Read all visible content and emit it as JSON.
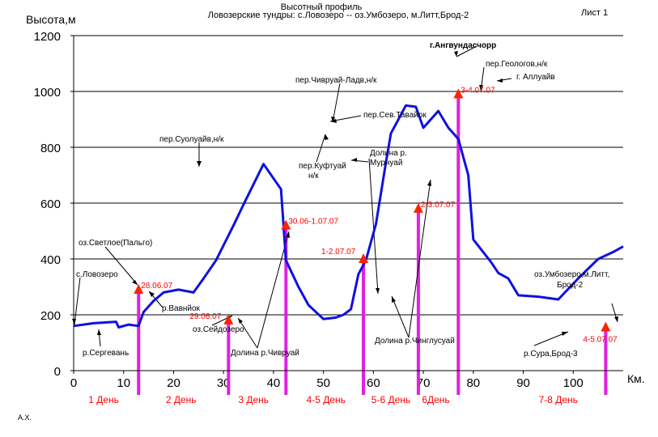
{
  "header": {
    "title": "Высотный профиль",
    "subtitle": "Ловозерские тундры: с.Ловозеро -- оз.Умбозеро, м.Литт,Брод-2",
    "sheet": "Лист 1",
    "author": "А.Х."
  },
  "colors": {
    "profile": "#1010e0",
    "camp_marker": "#ff2200",
    "camp_line": "#e020e0",
    "grid": "#000000",
    "day_label": "#ff0000",
    "camp_label": "#ff0000"
  },
  "chart_data": {
    "type": "line",
    "ylabel": "Высота,м",
    "xlabel": "Км.",
    "xlim": [
      0,
      110
    ],
    "ylim": [
      0,
      1200
    ],
    "xticks": [
      0,
      10,
      20,
      30,
      40,
      50,
      60,
      70,
      80,
      90,
      100
    ],
    "yticks": [
      0,
      200,
      400,
      600,
      800,
      1000,
      1200
    ],
    "grid": "horizontal",
    "series": [
      {
        "x": [
          0,
          4,
          8.5,
          9,
          11,
          13,
          14,
          16,
          18,
          21,
          24,
          26,
          28.5,
          32,
          34,
          38,
          41.5,
          42.5,
          45,
          47,
          50,
          52.5,
          54,
          55.5,
          57,
          58.5,
          60.5,
          62.5,
          63.5,
          66.5,
          68.5,
          70,
          73,
          75,
          77,
          79,
          80,
          83.5,
          85,
          87,
          89,
          93,
          97,
          101,
          105,
          108,
          110
        ],
        "y": [
          160,
          170,
          175,
          155,
          165,
          160,
          210,
          250,
          280,
          290,
          280,
          330,
          395,
          520,
          595,
          740,
          650,
          395,
          300,
          235,
          185,
          190,
          200,
          220,
          345,
          395,
          525,
          745,
          850,
          950,
          945,
          870,
          930,
          870,
          830,
          700,
          470,
          390,
          350,
          330,
          270,
          265,
          255,
          330,
          400,
          425,
          445
        ]
      }
    ],
    "camps": [
      {
        "km": 13,
        "elev": 290,
        "label": "28.06.07"
      },
      {
        "km": 31,
        "elev": 180,
        "label": "29.06.07"
      },
      {
        "km": 42.5,
        "elev": 520,
        "label": "30.06-1.07.07"
      },
      {
        "km": 58,
        "elev": 400,
        "label": "1-2.07.07"
      },
      {
        "km": 69,
        "elev": 580,
        "label": "2-3.07.07"
      },
      {
        "km": 77,
        "elev": 990,
        "label": "3-4.07.07"
      },
      {
        "km": 106.5,
        "elev": 155,
        "label": "4-5.07.07"
      }
    ],
    "days": [
      {
        "km": 6,
        "label": "1 День"
      },
      {
        "km": 21.5,
        "label": "2 День"
      },
      {
        "km": 36,
        "label": "3 День"
      },
      {
        "km": 50.5,
        "label": "4-5 День"
      },
      {
        "km": 63.5,
        "label": "5-6 День"
      },
      {
        "km": 72.5,
        "label": "6День"
      },
      {
        "km": 97,
        "label": "7-8 День"
      }
    ],
    "annotations": [
      "оз.Светлое(Пальго)",
      "с.Ловозеро",
      "р.Вавнйок",
      "р.Сергевань",
      "пер.Суолуайв,н/к",
      "оз.Сейдозеро",
      "Долина р.Чивруай",
      "пер.Чивруай-Ладв,н/к",
      "пер.Сев.Тавайок",
      "пер.Куфтуай",
      "н/к",
      "Долина р.",
      "Мурнуай",
      "Долина р.Чинглусуай",
      "г.Ангвундасчорр",
      "пер.Геологов,н/к",
      "г. Аллуайв",
      "оз.Умбозеро,м.Литт,",
      "Брод-2",
      "р.Сура,Брод-3"
    ]
  }
}
